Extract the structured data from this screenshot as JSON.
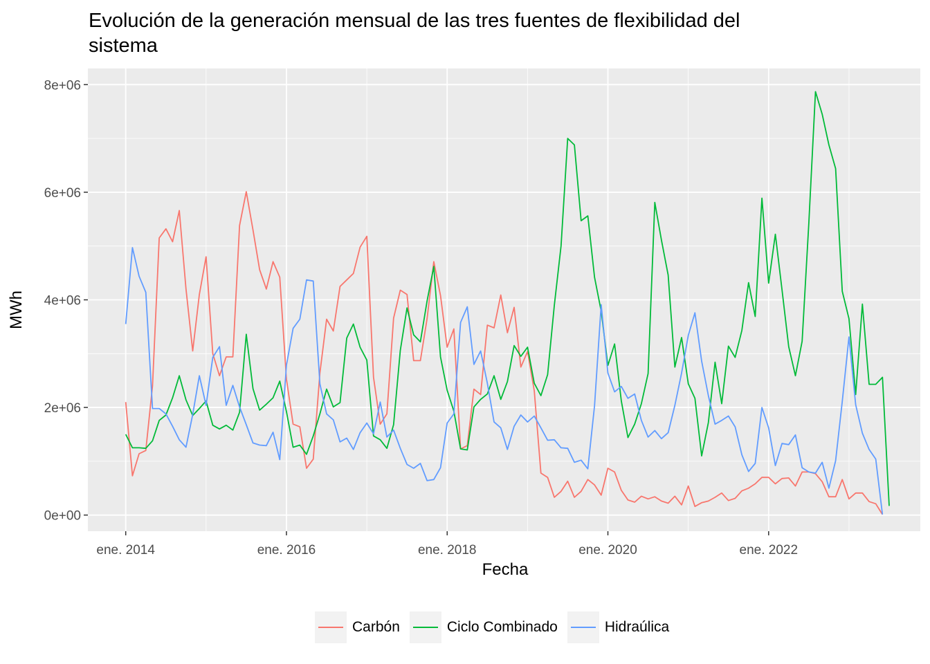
{
  "chart_data": {
    "type": "line",
    "title": "Evolución de la generación mensual de las tres fuentes de flexibilidad del\n    sistema",
    "xlabel": "Fecha",
    "ylabel": "MWh",
    "x_start": "2014-01",
    "x_end": "2023-06",
    "x_ticks": [
      "ene. 2014",
      "ene. 2016",
      "ene. 2018",
      "ene. 2020",
      "ene. 2022"
    ],
    "y_ticks": [
      "0e+00",
      "2e+06",
      "4e+06",
      "6e+06",
      "8e+06"
    ],
    "ylim": [
      -300000,
      8300000
    ],
    "grid": true,
    "legend_position": "bottom",
    "series": [
      {
        "name": "Carbón",
        "color": "#F8766D",
        "values": [
          2100000,
          730000,
          1140000,
          1200000,
          2400000,
          5150000,
          5320000,
          5080000,
          5660000,
          4200000,
          3050000,
          4100000,
          4800000,
          3000000,
          2590000,
          2940000,
          2940000,
          5380000,
          6010000,
          5300000,
          4560000,
          4200000,
          4710000,
          4420000,
          2520000,
          1690000,
          1640000,
          870000,
          1040000,
          2640000,
          3640000,
          3420000,
          4250000,
          4370000,
          4490000,
          4980000,
          5180000,
          2560000,
          1690000,
          1880000,
          3660000,
          4180000,
          4100000,
          2870000,
          2870000,
          3650000,
          4710000,
          4080000,
          3120000,
          3460000,
          1230000,
          1290000,
          2340000,
          2240000,
          3530000,
          3480000,
          4090000,
          3390000,
          3860000,
          2750000,
          3040000,
          2310000,
          780000,
          700000,
          330000,
          440000,
          630000,
          330000,
          440000,
          660000,
          560000,
          370000,
          870000,
          800000,
          460000,
          280000,
          240000,
          350000,
          300000,
          340000,
          260000,
          220000,
          350000,
          190000,
          540000,
          160000,
          230000,
          260000,
          330000,
          410000,
          270000,
          310000,
          450000,
          500000,
          580000,
          700000,
          700000,
          580000,
          680000,
          690000,
          540000,
          800000,
          800000,
          770000,
          620000,
          340000,
          340000,
          660000,
          300000,
          410000,
          410000,
          250000,
          210000,
          10000
        ]
      },
      {
        "name": "Ciclo Combinado",
        "color": "#00BA38",
        "values": [
          1500000,
          1250000,
          1250000,
          1240000,
          1380000,
          1760000,
          1860000,
          2180000,
          2590000,
          2140000,
          1850000,
          1980000,
          2120000,
          1670000,
          1600000,
          1670000,
          1580000,
          1910000,
          3360000,
          2350000,
          1950000,
          2060000,
          2180000,
          2490000,
          1920000,
          1260000,
          1300000,
          1130000,
          1470000,
          1880000,
          2340000,
          2010000,
          2090000,
          3290000,
          3550000,
          3120000,
          2880000,
          1470000,
          1400000,
          1240000,
          1680000,
          3060000,
          3850000,
          3350000,
          3220000,
          3980000,
          4620000,
          2940000,
          2320000,
          1930000,
          1230000,
          1210000,
          2010000,
          2150000,
          2250000,
          2590000,
          2150000,
          2480000,
          3150000,
          2950000,
          3120000,
          2450000,
          2220000,
          2610000,
          3900000,
          5000000,
          7000000,
          6880000,
          5470000,
          5560000,
          4420000,
          3790000,
          2780000,
          3180000,
          2120000,
          1440000,
          1690000,
          2070000,
          2630000,
          5810000,
          5110000,
          4460000,
          2750000,
          3300000,
          2440000,
          2170000,
          1100000,
          1720000,
          2840000,
          2070000,
          3140000,
          2930000,
          3430000,
          4320000,
          3690000,
          5890000,
          4310000,
          5220000,
          4190000,
          3130000,
          2590000,
          3230000,
          5430000,
          7870000,
          7450000,
          6880000,
          6440000,
          4160000,
          3650000,
          2240000,
          3920000,
          2430000,
          2430000,
          2560000,
          170000
        ]
      },
      {
        "name": "Hidraúlica",
        "color": "#619CFF",
        "values": [
          3550000,
          4970000,
          4440000,
          4140000,
          1980000,
          1980000,
          1880000,
          1650000,
          1400000,
          1260000,
          1870000,
          2590000,
          2040000,
          2930000,
          3130000,
          2040000,
          2410000,
          2010000,
          1680000,
          1340000,
          1300000,
          1290000,
          1540000,
          1030000,
          2790000,
          3470000,
          3640000,
          4370000,
          4350000,
          2440000,
          1880000,
          1770000,
          1360000,
          1430000,
          1220000,
          1530000,
          1710000,
          1510000,
          2100000,
          1450000,
          1580000,
          1240000,
          940000,
          870000,
          960000,
          640000,
          660000,
          880000,
          1710000,
          1880000,
          3580000,
          3870000,
          2800000,
          3050000,
          2450000,
          1730000,
          1620000,
          1220000,
          1650000,
          1860000,
          1730000,
          1840000,
          1620000,
          1390000,
          1400000,
          1250000,
          1240000,
          980000,
          1020000,
          860000,
          2030000,
          3910000,
          2640000,
          2290000,
          2390000,
          2170000,
          2250000,
          1760000,
          1450000,
          1570000,
          1420000,
          1530000,
          2040000,
          2640000,
          3340000,
          3760000,
          2860000,
          2220000,
          1690000,
          1760000,
          1840000,
          1640000,
          1120000,
          810000,
          960000,
          2000000,
          1620000,
          920000,
          1330000,
          1310000,
          1490000,
          880000,
          800000,
          780000,
          980000,
          500000,
          1010000,
          2110000,
          3310000,
          2050000,
          1520000,
          1220000,
          1040000,
          10000
        ]
      }
    ]
  }
}
